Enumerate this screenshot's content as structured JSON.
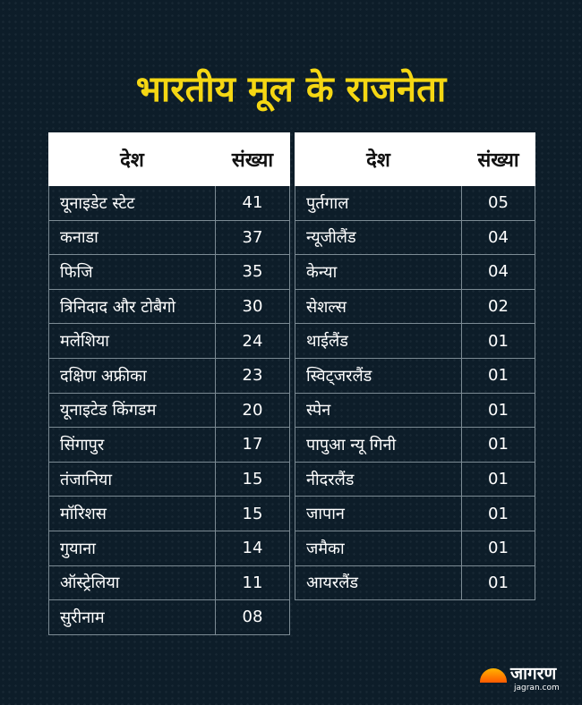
{
  "title": "भारतीय मूल के राजनेता",
  "header": {
    "country": "देश",
    "count": "संख्या"
  },
  "left_table": [
    {
      "country": "यूनाइडेट स्टेट",
      "count": "41"
    },
    {
      "country": "कनाडा",
      "count": "37"
    },
    {
      "country": "फिजि",
      "count": "35"
    },
    {
      "country": "त्रिनिदाद और टोबैगो",
      "count": "30"
    },
    {
      "country": "मलेशिया",
      "count": "24"
    },
    {
      "country": "दक्षिण अफ्रीका",
      "count": "23"
    },
    {
      "country": "यूनाइटेड किंगडम",
      "count": "20"
    },
    {
      "country": "सिंगापुर",
      "count": "17"
    },
    {
      "country": "तंजानिया",
      "count": "15"
    },
    {
      "country": "मॉरिशस",
      "count": "15"
    },
    {
      "country": "गुयाना",
      "count": "14"
    },
    {
      "country": "ऑस्ट्रेलिया",
      "count": "11"
    },
    {
      "country": "सुरीनाम",
      "count": "08"
    }
  ],
  "right_table": [
    {
      "country": "पुर्तगाल",
      "count": "05"
    },
    {
      "country": "न्यूजीलैंड",
      "count": "04"
    },
    {
      "country": "केन्या",
      "count": "04"
    },
    {
      "country": "सेशल्स",
      "count": "02"
    },
    {
      "country": "थाईलैंड",
      "count": "01"
    },
    {
      "country": "स्विट्जरलैंड",
      "count": "01"
    },
    {
      "country": "स्पेन",
      "count": "01"
    },
    {
      "country": "पापुआ न्यू गिनी",
      "count": "01"
    },
    {
      "country": "नीदरलैंड",
      "count": "01"
    },
    {
      "country": "जापान",
      "count": "01"
    },
    {
      "country": "जमैका",
      "count": "01"
    },
    {
      "country": "आयरलैंड",
      "count": "01"
    }
  ],
  "logo": {
    "name": "जागरण",
    "domain": "jagran.com",
    "icon": "rising-sun-icon"
  }
}
